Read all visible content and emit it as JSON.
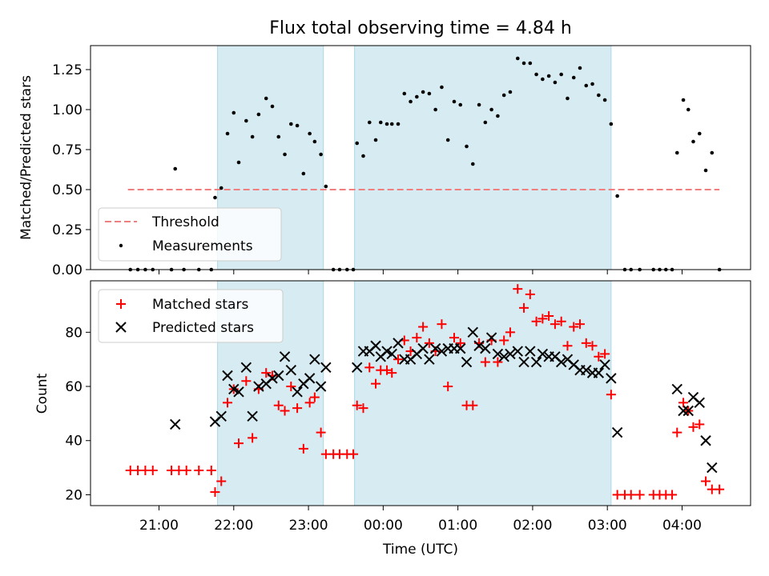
{
  "chart_data": [
    {
      "type": "scatter",
      "title": "Flux total observing time = 4.84 h",
      "ylabel": "Matched/Predicted stars",
      "xlabel": "",
      "ylim": [
        0,
        1.4
      ],
      "yticks": [
        "0.00",
        "0.25",
        "0.50",
        "0.75",
        "1.00",
        "1.25"
      ],
      "xlim": [
        "20:05",
        "04:55"
      ],
      "shaded_intervals": [
        [
          "21:47",
          "23:12"
        ],
        [
          "23:37",
          "03:03"
        ]
      ],
      "grid": false,
      "legend": "lower-left",
      "threshold": {
        "name": "Threshold",
        "value": 0.5,
        "x": [
          "20:35",
          "04:30"
        ],
        "color": "#f08080"
      },
      "series": [
        {
          "name": "Measurements",
          "color": "#000000",
          "points": [
            [
              "20:37",
              0
            ],
            [
              "20:43",
              0
            ],
            [
              "20:49",
              0
            ],
            [
              "20:55",
              0
            ],
            [
              "21:10",
              0
            ],
            [
              "21:13",
              0.63
            ],
            [
              "21:20",
              0
            ],
            [
              "21:32",
              0
            ],
            [
              "21:42",
              0
            ],
            [
              "21:45",
              0.45
            ],
            [
              "21:50",
              0.51
            ],
            [
              "21:55",
              0.85
            ],
            [
              "22:00",
              0.98
            ],
            [
              "22:04",
              0.67
            ],
            [
              "22:10",
              0.93
            ],
            [
              "22:15",
              0.83
            ],
            [
              "22:20",
              0.97
            ],
            [
              "22:26",
              1.07
            ],
            [
              "22:31",
              1.02
            ],
            [
              "22:36",
              0.83
            ],
            [
              "22:41",
              0.72
            ],
            [
              "22:46",
              0.91
            ],
            [
              "22:51",
              0.9
            ],
            [
              "22:56",
              0.6
            ],
            [
              "23:01",
              0.85
            ],
            [
              "23:05",
              0.8
            ],
            [
              "23:10",
              0.72
            ],
            [
              "23:14",
              0.52
            ],
            [
              "23:20",
              0
            ],
            [
              "23:25",
              0
            ],
            [
              "23:31",
              0
            ],
            [
              "23:36",
              0
            ],
            [
              "23:39",
              0.79
            ],
            [
              "23:44",
              0.71
            ],
            [
              "23:49",
              0.92
            ],
            [
              "23:54",
              0.81
            ],
            [
              "23:58",
              0.92
            ],
            [
              "00:03",
              0.91
            ],
            [
              "00:07",
              0.91
            ],
            [
              "00:12",
              0.91
            ],
            [
              "00:17",
              1.1
            ],
            [
              "00:22",
              1.05
            ],
            [
              "00:27",
              1.08
            ],
            [
              "00:32",
              1.11
            ],
            [
              "00:37",
              1.1
            ],
            [
              "00:42",
              1.0
            ],
            [
              "00:47",
              1.14
            ],
            [
              "00:52",
              0.81
            ],
            [
              "00:57",
              1.05
            ],
            [
              "01:02",
              1.03
            ],
            [
              "01:07",
              0.77
            ],
            [
              "01:12",
              0.66
            ],
            [
              "01:17",
              1.03
            ],
            [
              "01:22",
              0.92
            ],
            [
              "01:27",
              1.0
            ],
            [
              "01:32",
              0.96
            ],
            [
              "01:37",
              1.09
            ],
            [
              "01:42",
              1.11
            ],
            [
              "01:48",
              1.32
            ],
            [
              "01:53",
              1.29
            ],
            [
              "01:58",
              1.29
            ],
            [
              "02:03",
              1.22
            ],
            [
              "02:08",
              1.19
            ],
            [
              "02:13",
              1.21
            ],
            [
              "02:18",
              1.17
            ],
            [
              "02:23",
              1.22
            ],
            [
              "02:28",
              1.07
            ],
            [
              "02:33",
              1.2
            ],
            [
              "02:38",
              1.26
            ],
            [
              "02:43",
              1.15
            ],
            [
              "02:48",
              1.16
            ],
            [
              "02:53",
              1.09
            ],
            [
              "02:58",
              1.06
            ],
            [
              "03:03",
              0.91
            ],
            [
              "03:08",
              0.46
            ],
            [
              "03:14",
              0
            ],
            [
              "03:19",
              0
            ],
            [
              "03:26",
              0
            ],
            [
              "03:37",
              0
            ],
            [
              "03:42",
              0
            ],
            [
              "03:47",
              0
            ],
            [
              "03:52",
              0
            ],
            [
              "03:56",
              0.73
            ],
            [
              "04:01",
              1.06
            ],
            [
              "04:05",
              1.0
            ],
            [
              "04:09",
              0.8
            ],
            [
              "04:14",
              0.85
            ],
            [
              "04:19",
              0.62
            ],
            [
              "04:24",
              0.73
            ],
            [
              "04:30",
              0
            ]
          ]
        }
      ]
    },
    {
      "type": "scatter",
      "title": "",
      "ylabel": "Count",
      "xlabel": "Time (UTC)",
      "ylim": [
        16,
        99
      ],
      "yticks": [
        "20",
        "40",
        "60",
        "80"
      ],
      "xlim": [
        "20:05",
        "04:55"
      ],
      "xticks": [
        "21:00",
        "22:00",
        "23:00",
        "00:00",
        "01:00",
        "02:00",
        "03:00",
        "04:00"
      ],
      "shaded_intervals": [
        [
          "21:47",
          "23:12"
        ],
        [
          "23:37",
          "03:03"
        ]
      ],
      "grid": false,
      "legend": "upper-left",
      "series": [
        {
          "name": "Matched stars",
          "marker": "plus",
          "color": "#ff0000",
          "points": [
            [
              "20:37",
              29
            ],
            [
              "20:43",
              29
            ],
            [
              "20:49",
              29
            ],
            [
              "20:55",
              29
            ],
            [
              "21:10",
              29
            ],
            [
              "21:16",
              29
            ],
            [
              "21:22",
              29
            ],
            [
              "21:32",
              29
            ],
            [
              "21:42",
              29
            ],
            [
              "21:45",
              21
            ],
            [
              "21:50",
              25
            ],
            [
              "21:55",
              54
            ],
            [
              "22:00",
              59
            ],
            [
              "22:04",
              39
            ],
            [
              "22:10",
              62
            ],
            [
              "22:15",
              41
            ],
            [
              "22:20",
              59
            ],
            [
              "22:26",
              65
            ],
            [
              "22:31",
              64
            ],
            [
              "22:36",
              53
            ],
            [
              "22:41",
              51
            ],
            [
              "22:46",
              60
            ],
            [
              "22:51",
              52
            ],
            [
              "22:56",
              37
            ],
            [
              "23:01",
              54
            ],
            [
              "23:05",
              56
            ],
            [
              "23:10",
              43
            ],
            [
              "23:14",
              35
            ],
            [
              "23:20",
              35
            ],
            [
              "23:25",
              35
            ],
            [
              "23:31",
              35
            ],
            [
              "23:36",
              35
            ],
            [
              "23:39",
              53
            ],
            [
              "23:44",
              52
            ],
            [
              "23:49",
              67
            ],
            [
              "23:54",
              61
            ],
            [
              "23:58",
              66
            ],
            [
              "00:03",
              66
            ],
            [
              "00:07",
              65
            ],
            [
              "00:12",
              70
            ],
            [
              "00:17",
              77
            ],
            [
              "00:22",
              73
            ],
            [
              "00:27",
              78
            ],
            [
              "00:32",
              82
            ],
            [
              "00:37",
              76
            ],
            [
              "00:42",
              73
            ],
            [
              "00:47",
              83
            ],
            [
              "00:52",
              60
            ],
            [
              "00:57",
              78
            ],
            [
              "01:02",
              76
            ],
            [
              "01:07",
              53
            ],
            [
              "01:12",
              53
            ],
            [
              "01:17",
              76
            ],
            [
              "01:22",
              69
            ],
            [
              "01:27",
              77
            ],
            [
              "01:32",
              69
            ],
            [
              "01:37",
              77
            ],
            [
              "01:42",
              80
            ],
            [
              "01:48",
              96
            ],
            [
              "01:53",
              89
            ],
            [
              "01:58",
              94
            ],
            [
              "02:03",
              84
            ],
            [
              "02:08",
              85
            ],
            [
              "02:13",
              86
            ],
            [
              "02:18",
              83
            ],
            [
              "02:23",
              84
            ],
            [
              "02:28",
              75
            ],
            [
              "02:33",
              82
            ],
            [
              "02:38",
              83
            ],
            [
              "02:43",
              76
            ],
            [
              "02:48",
              75
            ],
            [
              "02:53",
              71
            ],
            [
              "02:58",
              72
            ],
            [
              "03:03",
              57
            ],
            [
              "03:08",
              20
            ],
            [
              "03:14",
              20
            ],
            [
              "03:19",
              20
            ],
            [
              "03:26",
              20
            ],
            [
              "03:37",
              20
            ],
            [
              "03:42",
              20
            ],
            [
              "03:47",
              20
            ],
            [
              "03:52",
              20
            ],
            [
              "03:56",
              43
            ],
            [
              "04:01",
              54
            ],
            [
              "04:05",
              51
            ],
            [
              "04:09",
              45
            ],
            [
              "04:14",
              46
            ],
            [
              "04:19",
              25
            ],
            [
              "04:24",
              22
            ],
            [
              "04:30",
              22
            ]
          ]
        },
        {
          "name": "Predicted stars",
          "marker": "x",
          "color": "#000000",
          "points": [
            [
              "21:13",
              46
            ],
            [
              "21:45",
              47
            ],
            [
              "21:50",
              49
            ],
            [
              "21:55",
              64
            ],
            [
              "22:00",
              59
            ],
            [
              "22:04",
              58
            ],
            [
              "22:10",
              67
            ],
            [
              "22:15",
              49
            ],
            [
              "22:20",
              60
            ],
            [
              "22:26",
              61
            ],
            [
              "22:31",
              63
            ],
            [
              "22:36",
              64
            ],
            [
              "22:41",
              71
            ],
            [
              "22:46",
              66
            ],
            [
              "22:51",
              58
            ],
            [
              "22:56",
              61
            ],
            [
              "23:01",
              63
            ],
            [
              "23:05",
              70
            ],
            [
              "23:10",
              60
            ],
            [
              "23:14",
              67
            ],
            [
              "23:39",
              67
            ],
            [
              "23:44",
              73
            ],
            [
              "23:49",
              73
            ],
            [
              "23:54",
              75
            ],
            [
              "23:58",
              71
            ],
            [
              "00:03",
              73
            ],
            [
              "00:07",
              72
            ],
            [
              "00:12",
              76
            ],
            [
              "00:17",
              70
            ],
            [
              "00:22",
              70
            ],
            [
              "00:27",
              72
            ],
            [
              "00:32",
              74
            ],
            [
              "00:37",
              70
            ],
            [
              "00:42",
              74
            ],
            [
              "00:47",
              73
            ],
            [
              "00:52",
              74
            ],
            [
              "00:57",
              74
            ],
            [
              "01:02",
              74
            ],
            [
              "01:07",
              69
            ],
            [
              "01:12",
              80
            ],
            [
              "01:17",
              75
            ],
            [
              "01:22",
              74
            ],
            [
              "01:27",
              78
            ],
            [
              "01:32",
              72
            ],
            [
              "01:37",
              71
            ],
            [
              "01:42",
              72
            ],
            [
              "01:48",
              73
            ],
            [
              "01:53",
              69
            ],
            [
              "01:58",
              73
            ],
            [
              "02:03",
              69
            ],
            [
              "02:08",
              72
            ],
            [
              "02:13",
              71
            ],
            [
              "02:18",
              71
            ],
            [
              "02:23",
              69
            ],
            [
              "02:28",
              70
            ],
            [
              "02:33",
              68
            ],
            [
              "02:38",
              66
            ],
            [
              "02:43",
              66
            ],
            [
              "02:48",
              65
            ],
            [
              "02:53",
              65
            ],
            [
              "02:58",
              68
            ],
            [
              "03:03",
              63
            ],
            [
              "03:08",
              43
            ],
            [
              "03:56",
              59
            ],
            [
              "04:01",
              51
            ],
            [
              "04:05",
              51
            ],
            [
              "04:09",
              56
            ],
            [
              "04:14",
              54
            ],
            [
              "04:19",
              40
            ],
            [
              "04:24",
              30
            ]
          ]
        }
      ]
    }
  ]
}
